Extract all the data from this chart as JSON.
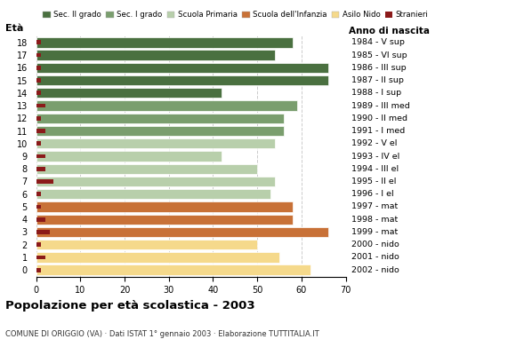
{
  "ages": [
    18,
    17,
    16,
    15,
    14,
    13,
    12,
    11,
    10,
    9,
    8,
    7,
    6,
    5,
    4,
    3,
    2,
    1,
    0
  ],
  "bar_values": [
    58,
    54,
    66,
    66,
    42,
    59,
    56,
    56,
    54,
    42,
    50,
    54,
    53,
    58,
    58,
    66,
    50,
    55,
    62
  ],
  "stranieri": [
    1,
    1,
    1,
    1,
    1,
    2,
    1,
    2,
    1,
    2,
    2,
    4,
    1,
    1,
    2,
    3,
    1,
    2,
    1
  ],
  "anno_nascita": [
    "1984 - V sup",
    "1985 - VI sup",
    "1986 - III sup",
    "1987 - II sup",
    "1988 - I sup",
    "1989 - III med",
    "1990 - II med",
    "1991 - I med",
    "1992 - V el",
    "1993 - IV el",
    "1994 - III el",
    "1995 - II el",
    "1996 - I el",
    "1997 - mat",
    "1998 - mat",
    "1999 - mat",
    "2000 - nido",
    "2001 - nido",
    "2002 - nido"
  ],
  "categories": {
    "sec2": {
      "label": "Sec. II grado",
      "color": "#4a7040",
      "ages": [
        18,
        17,
        16,
        15,
        14
      ]
    },
    "sec1": {
      "label": "Sec. I grado",
      "color": "#7a9e6e",
      "ages": [
        13,
        12,
        11
      ]
    },
    "primaria": {
      "label": "Scuola Primaria",
      "color": "#b8cfab",
      "ages": [
        10,
        9,
        8,
        7,
        6
      ]
    },
    "infanzia": {
      "label": "Scuola dell'Infanzia",
      "color": "#c87137",
      "ages": [
        5,
        4,
        3
      ]
    },
    "nido": {
      "label": "Asilo Nido",
      "color": "#f5d98b",
      "ages": [
        2,
        1,
        0
      ]
    }
  },
  "stranieri_color": "#8b1a1a",
  "title_main": "Popolazione per età scolastica - 2003",
  "subtitle": "COMUNE DI ORIGGIO (VA) · Dati ISTAT 1° gennaio 2003 · Elaborazione TUTTITALIA.IT",
  "ylabel": "Età",
  "xlabel_right": "Anno di nascita",
  "xlim": [
    0,
    70
  ],
  "xticks": [
    0,
    10,
    20,
    30,
    40,
    50,
    60,
    70
  ],
  "background_color": "#ffffff",
  "grid_color": "#cccccc"
}
